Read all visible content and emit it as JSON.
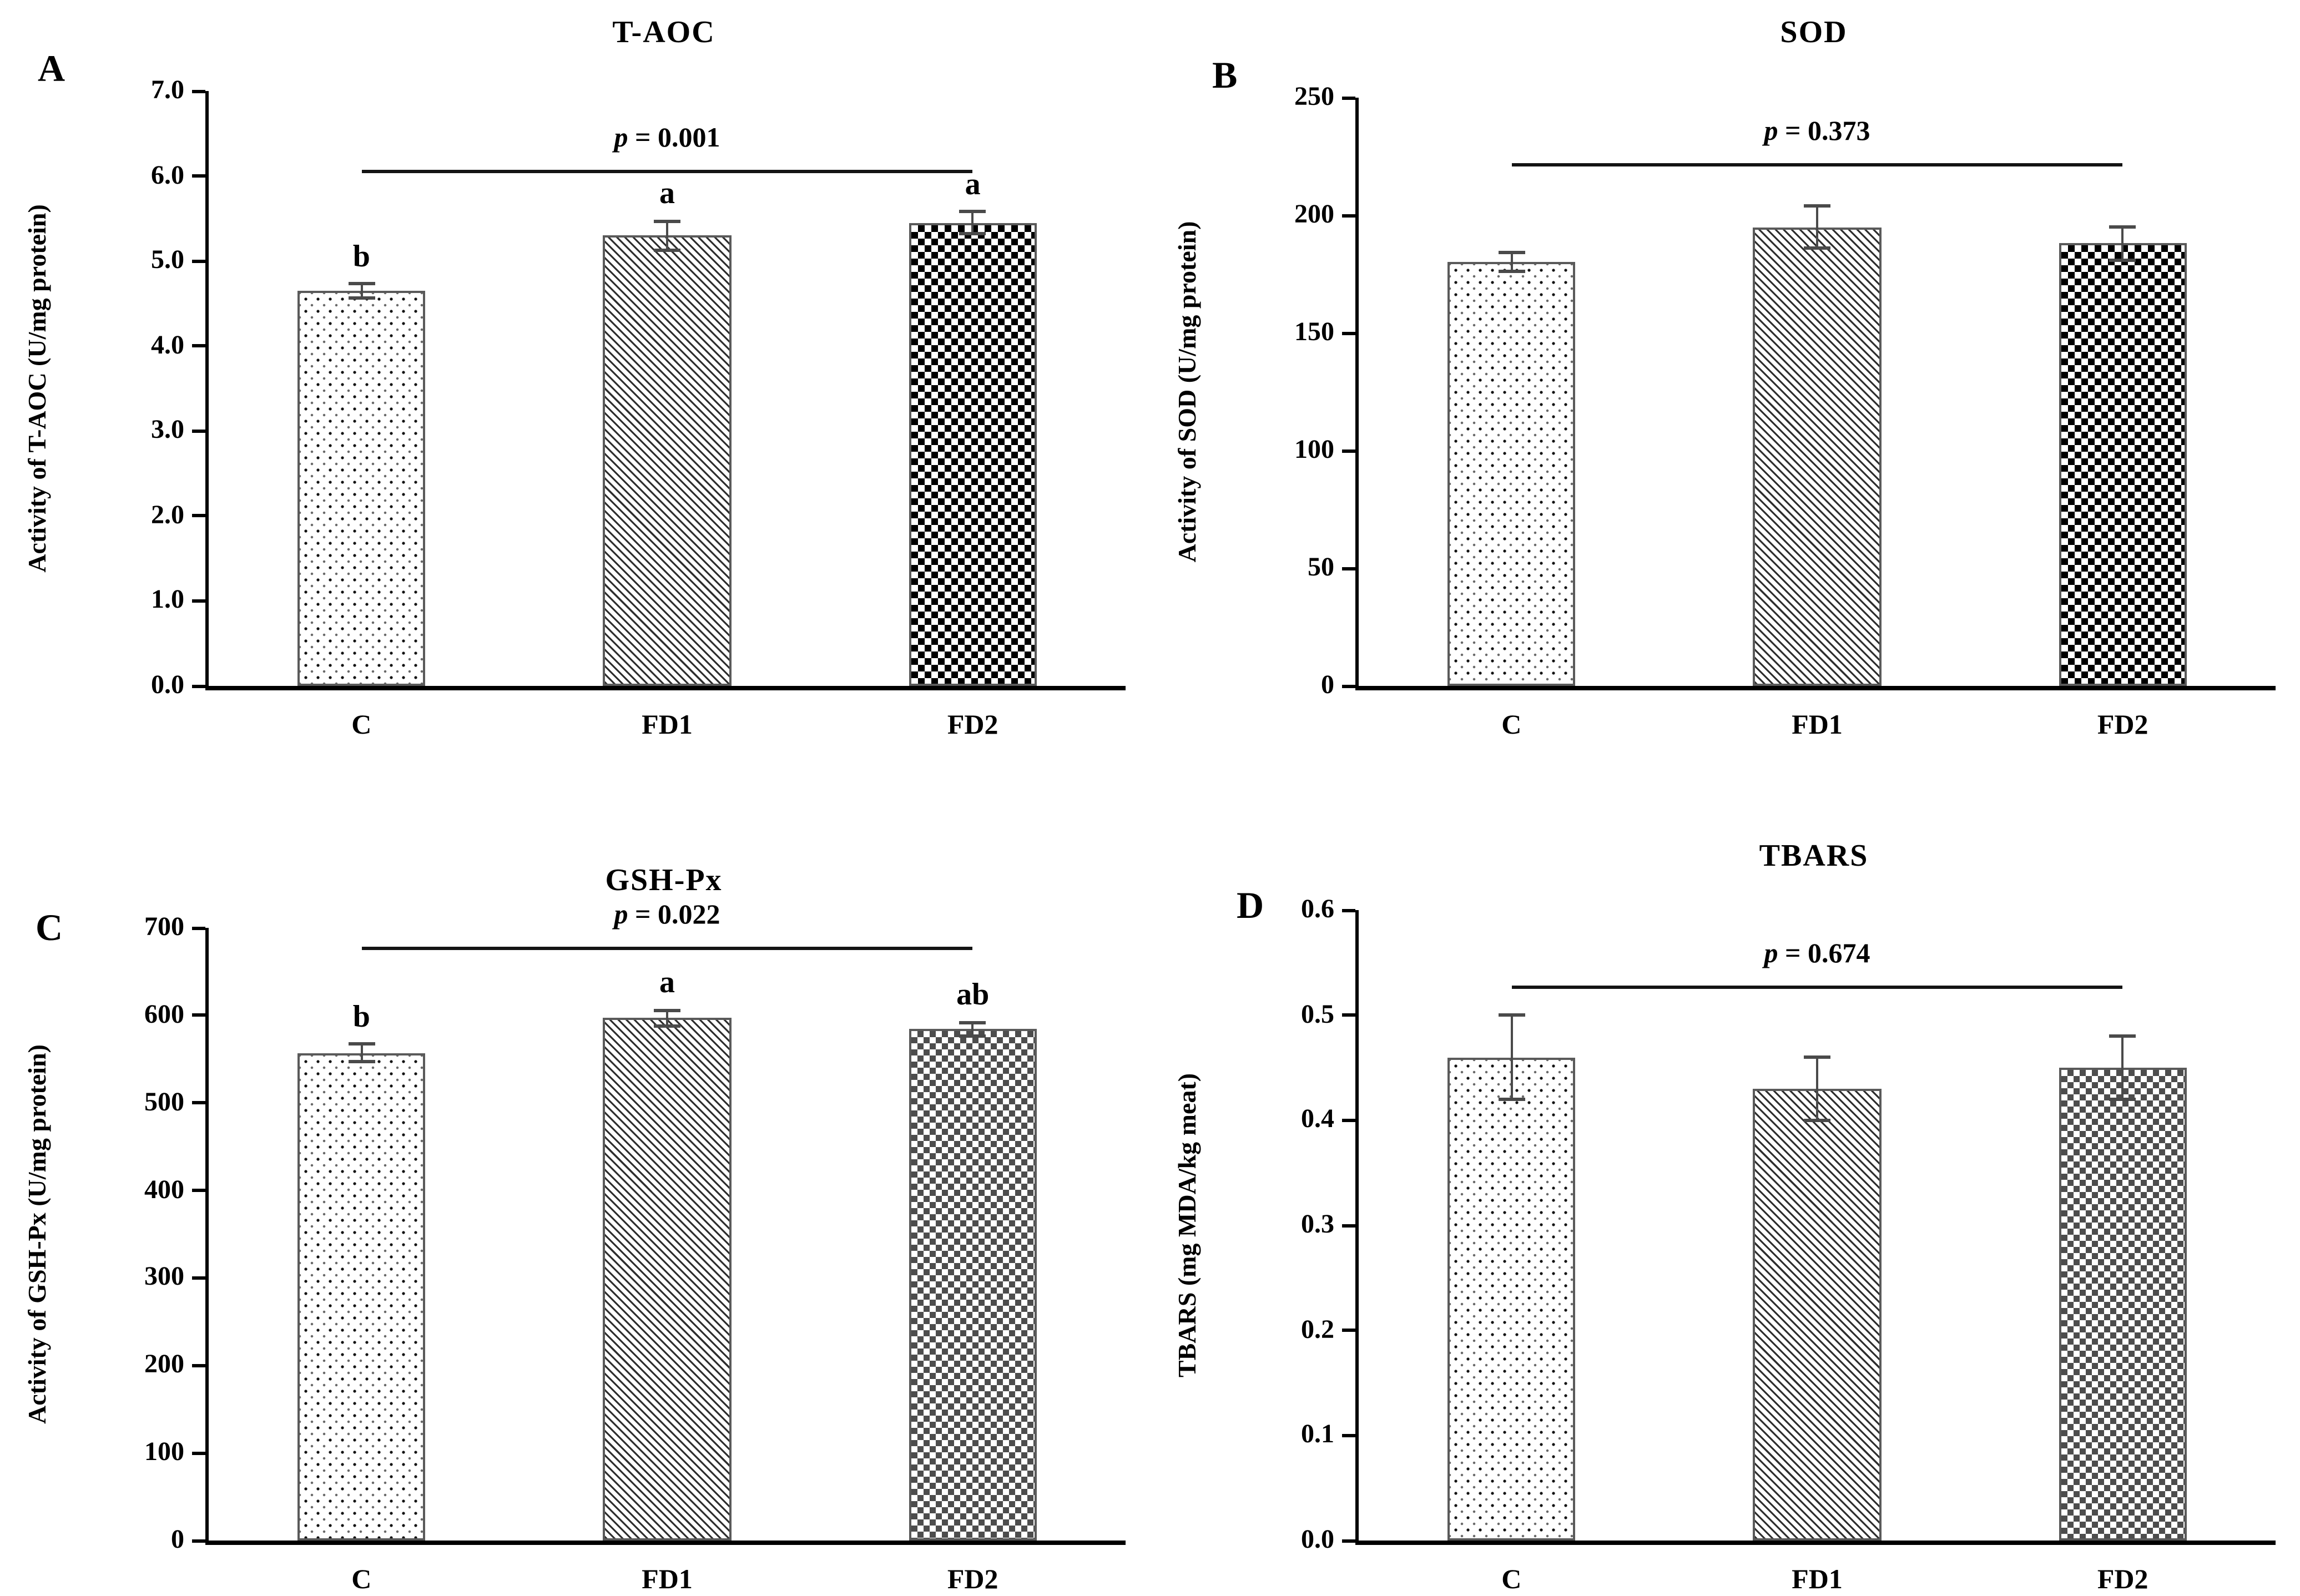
{
  "figure": {
    "background": "#ffffff",
    "text_color": "#000000",
    "error_bar_color": "#4a4a4a",
    "sig_line_color": "#141414"
  },
  "chart_data": [
    {
      "type": "bar",
      "panel_letter": "A",
      "title": "T-AOC",
      "ylabel": "Activity of T-AOC (U/mg protein)",
      "categories": [
        "C",
        "FD1",
        "FD2"
      ],
      "values": [
        4.65,
        5.3,
        5.45
      ],
      "errors": [
        0.08,
        0.17,
        0.13
      ],
      "sig_letters": [
        "b",
        "a",
        "a"
      ],
      "p_symbol": "p",
      "p_rest": " = 0.001",
      "ylim": [
        0,
        7
      ],
      "ytick_values": [
        0,
        1,
        2,
        3,
        4,
        5,
        6,
        7
      ],
      "ytick_labels": [
        "0.0",
        "1.0",
        "2.0",
        "3.0",
        "4.0",
        "5.0",
        "6.0",
        "7.0"
      ],
      "sig_line_y": 6.07,
      "patterns": [
        "dots",
        "diag",
        "check-black"
      ],
      "grid": false,
      "legend": "none"
    },
    {
      "type": "bar",
      "panel_letter": "B",
      "title": "SOD",
      "ylabel": "Activity of SOD (U/mg protein)",
      "categories": [
        "C",
        "FD1",
        "FD2"
      ],
      "values": [
        180,
        195,
        188
      ],
      "errors": [
        4,
        9,
        7
      ],
      "sig_letters": null,
      "p_symbol": "p",
      "p_rest": " = 0.373",
      "ylim": [
        0,
        250
      ],
      "ytick_values": [
        0,
        50,
        100,
        150,
        200,
        250
      ],
      "ytick_labels": [
        "0",
        "50",
        "100",
        "150",
        "200",
        "250"
      ],
      "sig_line_y": 222,
      "patterns": [
        "dots",
        "diag",
        "check-black"
      ],
      "grid": false,
      "legend": "none"
    },
    {
      "type": "bar",
      "panel_letter": "C",
      "title": "GSH-Px",
      "ylabel": "Activity of GSH-Px (U/mg protein)",
      "categories": [
        "C",
        "FD1",
        "FD2"
      ],
      "values": [
        557,
        597,
        584
      ],
      "errors": [
        10,
        9,
        8
      ],
      "sig_letters": [
        "b",
        "a",
        "ab"
      ],
      "p_symbol": "p",
      "p_rest": " = 0.022",
      "ylim": [
        0,
        700
      ],
      "ytick_values": [
        0,
        100,
        200,
        300,
        400,
        500,
        600,
        700
      ],
      "ytick_labels": [
        "0",
        "100",
        "200",
        "300",
        "400",
        "500",
        "600",
        "700"
      ],
      "sig_line_y": 678,
      "patterns": [
        "dots",
        "diag",
        "check-gray"
      ],
      "grid": false,
      "legend": "none"
    },
    {
      "type": "bar",
      "panel_letter": "D",
      "title": "TBARS",
      "ylabel": "TBARS (mg MDA/kg meat)",
      "categories": [
        "C",
        "FD1",
        "FD2"
      ],
      "values": [
        0.46,
        0.43,
        0.45
      ],
      "errors": [
        0.04,
        0.03,
        0.03
      ],
      "sig_letters": null,
      "p_symbol": "p",
      "p_rest": " = 0.674",
      "ylim": [
        0,
        0.6
      ],
      "ytick_values": [
        0,
        0.1,
        0.2,
        0.3,
        0.4,
        0.5,
        0.6
      ],
      "ytick_labels": [
        "0.0",
        "0.1",
        "0.2",
        "0.3",
        "0.4",
        "0.5",
        "0.6"
      ],
      "sig_line_y": 0.528,
      "patterns": [
        "dots",
        "diag",
        "check-gray"
      ],
      "grid": false,
      "legend": "none"
    }
  ]
}
